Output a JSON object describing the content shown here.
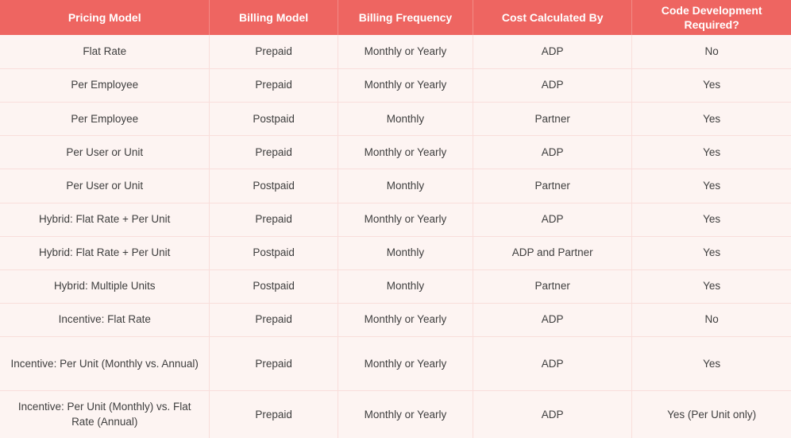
{
  "table": {
    "columns": [
      "Pricing Model",
      "Billing Model",
      "Billing Frequency",
      "Cost Calculated By",
      "Code Development Required?"
    ],
    "rows": [
      {
        "cells": [
          "Flat Rate",
          "Prepaid",
          "Monthly or Yearly",
          "ADP",
          "No"
        ]
      },
      {
        "cells": [
          "Per Employee",
          "Prepaid",
          "Monthly or Yearly",
          "ADP",
          "Yes"
        ]
      },
      {
        "cells": [
          "Per Employee",
          "Postpaid",
          "Monthly",
          "Partner",
          "Yes"
        ]
      },
      {
        "cells": [
          "Per User or Unit",
          "Prepaid",
          "Monthly or Yearly",
          "ADP",
          "Yes"
        ]
      },
      {
        "cells": [
          "Per User or Unit",
          "Postpaid",
          "Monthly",
          "Partner",
          "Yes"
        ]
      },
      {
        "cells": [
          "Hybrid: Flat Rate + Per Unit",
          "Prepaid",
          "Monthly or Yearly",
          "ADP",
          "Yes"
        ]
      },
      {
        "cells": [
          "Hybrid: Flat Rate + Per Unit",
          "Postpaid",
          "Monthly",
          "ADP and Partner",
          "Yes"
        ]
      },
      {
        "cells": [
          "Hybrid: Multiple Units",
          "Postpaid",
          "Monthly",
          "Partner",
          "Yes"
        ]
      },
      {
        "cells": [
          "Incentive: Flat Rate",
          "Prepaid",
          "Monthly or Yearly",
          "ADP",
          "No"
        ]
      },
      {
        "cells": [
          "Incentive: Per Unit (Monthly vs. Annual)",
          "Prepaid",
          "Monthly or Yearly",
          "ADP",
          "Yes"
        ]
      },
      {
        "cells": [
          "Incentive: Per Unit (Monthly) vs. Flat Rate (Annual)",
          "Prepaid",
          "Monthly or Yearly",
          "ADP",
          "Yes (Per Unit only)"
        ]
      }
    ]
  },
  "colors": {
    "header_bg": "#ee6561",
    "header_divider": "#f28b86",
    "header_text": "#ffffff",
    "row_bg": "#fdf4f2",
    "grid_line": "#f9dedb",
    "body_text": "#3e3e3e"
  },
  "chart_data": {
    "type": "table",
    "columns": [
      "Pricing Model",
      "Billing Model",
      "Billing Frequency",
      "Cost Calculated By",
      "Code Development Required?"
    ],
    "rows": [
      [
        "Flat Rate",
        "Prepaid",
        "Monthly or Yearly",
        "ADP",
        "No"
      ],
      [
        "Per Employee",
        "Prepaid",
        "Monthly or Yearly",
        "ADP",
        "Yes"
      ],
      [
        "Per Employee",
        "Postpaid",
        "Monthly",
        "Partner",
        "Yes"
      ],
      [
        "Per User or Unit",
        "Prepaid",
        "Monthly or Yearly",
        "ADP",
        "Yes"
      ],
      [
        "Per User or Unit",
        "Postpaid",
        "Monthly",
        "Partner",
        "Yes"
      ],
      [
        "Hybrid: Flat Rate + Per Unit",
        "Prepaid",
        "Monthly or Yearly",
        "ADP",
        "Yes"
      ],
      [
        "Hybrid: Flat Rate + Per Unit",
        "Postpaid",
        "Monthly",
        "ADP and Partner",
        "Yes"
      ],
      [
        "Hybrid: Multiple Units",
        "Postpaid",
        "Monthly",
        "Partner",
        "Yes"
      ],
      [
        "Incentive: Flat Rate",
        "Prepaid",
        "Monthly or Yearly",
        "ADP",
        "No"
      ],
      [
        "Incentive: Per Unit (Monthly vs. Annual)",
        "Prepaid",
        "Monthly or Yearly",
        "ADP",
        "Yes"
      ],
      [
        "Incentive: Per Unit (Monthly) vs. Flat Rate (Annual)",
        "Prepaid",
        "Monthly or Yearly",
        "ADP",
        "Yes (Per Unit only)"
      ]
    ],
    "layout_hints": {
      "header_position": "top",
      "grid": true,
      "column_width_pct": [
        26.5,
        16.2,
        17.1,
        20.1,
        20.1
      ]
    }
  }
}
